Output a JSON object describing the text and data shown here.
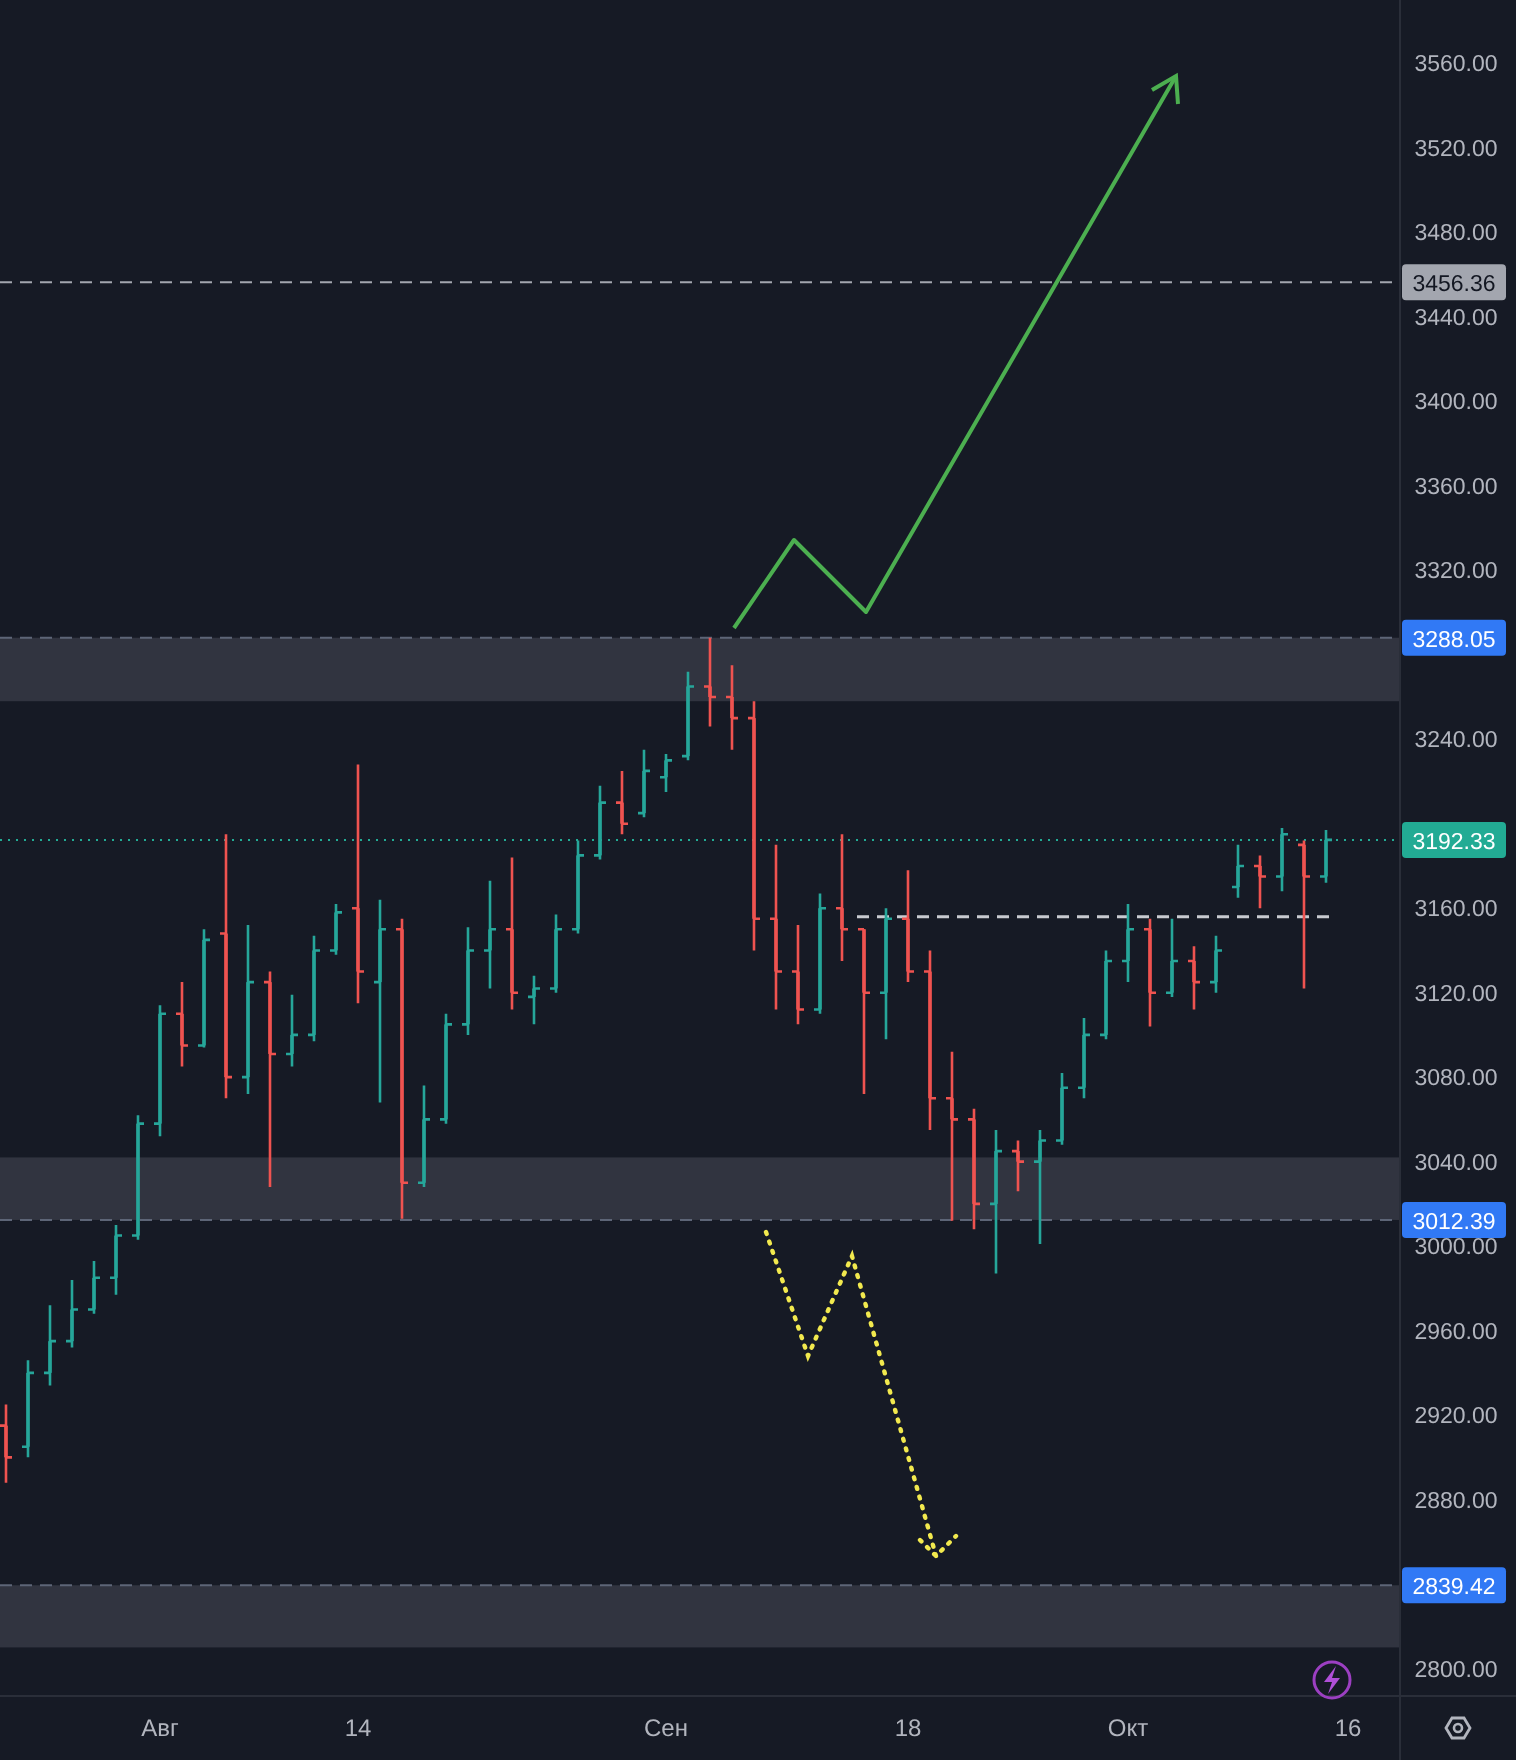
{
  "chart_data": {
    "type": "candlestick",
    "categories": [
      null,
      null,
      null,
      null,
      null,
      null,
      null,
      "Авг",
      null,
      null,
      null,
      null,
      null,
      null,
      null,
      null,
      "14",
      null,
      null,
      null,
      null,
      null,
      null,
      null,
      null,
      null,
      null,
      null,
      null,
      null,
      "Сен",
      null,
      null,
      null,
      null,
      null,
      null,
      null,
      null,
      null,
      null,
      "18",
      null,
      null,
      null,
      null,
      null,
      null,
      null,
      null,
      null,
      "Окт",
      null,
      null,
      null,
      null,
      null,
      null,
      null,
      null,
      null,
      "16"
    ],
    "ohlc": [
      [
        2915,
        2925,
        2888,
        2900
      ],
      [
        2905,
        2946,
        2900,
        2940
      ],
      [
        2940,
        2972,
        2934,
        2955
      ],
      [
        2955,
        2984,
        2952,
        2970
      ],
      [
        2970,
        2993,
        2968,
        2985
      ],
      [
        2985,
        3010,
        2977,
        3005
      ],
      [
        3005,
        3062,
        3003,
        3058
      ],
      [
        3058,
        3114,
        3052,
        3110
      ],
      [
        3110,
        3125,
        3085,
        3095
      ],
      [
        3095,
        3150,
        3094,
        3145
      ],
      [
        3148,
        3195,
        3070,
        3080
      ],
      [
        3080,
        3152,
        3072,
        3125
      ],
      [
        3125,
        3130,
        3028,
        3091
      ],
      [
        3091,
        3119,
        3085,
        3100
      ],
      [
        3100,
        3147,
        3097,
        3140
      ],
      [
        3140,
        3162,
        3138,
        3158
      ],
      [
        3160,
        3228,
        3115,
        3130
      ],
      [
        3125,
        3164,
        3068,
        3150
      ],
      [
        3150,
        3155,
        3013,
        3030
      ],
      [
        3030,
        3076,
        3028,
        3060
      ],
      [
        3060,
        3110,
        3058,
        3105
      ],
      [
        3105,
        3151,
        3100,
        3140
      ],
      [
        3140,
        3173,
        3122,
        3150
      ],
      [
        3150,
        3184,
        3112,
        3120
      ],
      [
        3118,
        3128,
        3105,
        3122
      ],
      [
        3122,
        3157,
        3120,
        3150
      ],
      [
        3150,
        3192,
        3148,
        3185
      ],
      [
        3185,
        3218,
        3183,
        3210
      ],
      [
        3210,
        3225,
        3195,
        3200
      ],
      [
        3205,
        3235,
        3203,
        3225
      ],
      [
        3222,
        3233,
        3215,
        3230
      ],
      [
        3232,
        3272,
        3230,
        3265
      ],
      [
        3265,
        3288,
        3246,
        3260
      ],
      [
        3260,
        3275,
        3235,
        3250
      ],
      [
        3250,
        3258,
        3140,
        3155
      ],
      [
        3155,
        3190,
        3112,
        3130
      ],
      [
        3130,
        3152,
        3105,
        3112
      ],
      [
        3112,
        3167,
        3110,
        3160
      ],
      [
        3160,
        3195,
        3135,
        3150
      ],
      [
        3150,
        3150,
        3072,
        3120
      ],
      [
        3120,
        3160,
        3098,
        3155
      ],
      [
        3155,
        3178,
        3125,
        3130
      ],
      [
        3130,
        3140,
        3055,
        3070
      ],
      [
        3070,
        3092,
        3012,
        3060
      ],
      [
        3060,
        3065,
        3008,
        3020
      ],
      [
        3020,
        3055,
        2987,
        3045
      ],
      [
        3045,
        3050,
        3026,
        3040
      ],
      [
        3040,
        3055,
        3001,
        3050
      ],
      [
        3050,
        3082,
        3048,
        3075
      ],
      [
        3075,
        3108,
        3070,
        3100
      ],
      [
        3100,
        3140,
        3098,
        3135
      ],
      [
        3135,
        3162,
        3125,
        3150
      ],
      [
        3150,
        3155,
        3104,
        3120
      ],
      [
        3120,
        3155,
        3118,
        3135
      ],
      [
        3135,
        3142,
        3112,
        3125
      ],
      [
        3125,
        3147,
        3120,
        3140
      ],
      [
        3170,
        3190,
        3165,
        3180
      ],
      [
        3180,
        3185,
        3160,
        3175
      ],
      [
        3175,
        3198,
        3168,
        3195
      ],
      [
        3190,
        3192,
        3122,
        3175
      ],
      [
        3175,
        3197,
        3172,
        3192.33
      ],
      null
    ],
    "ylim": [
      2787,
      3590
    ],
    "yticks": [
      {
        "value": 2800,
        "label": "2800.00"
      },
      {
        "value": 2880,
        "label": "2880.00"
      },
      {
        "value": 2920,
        "label": "2920.00"
      },
      {
        "value": 2960,
        "label": "2960.00"
      },
      {
        "value": 3000,
        "label": "3000.00"
      },
      {
        "value": 3040,
        "label": "3040.00"
      },
      {
        "value": 3080,
        "label": "3080.00"
      },
      {
        "value": 3120,
        "label": "3120.00"
      },
      {
        "value": 3160,
        "label": "3160.00"
      },
      {
        "value": 3240,
        "label": "3240.00"
      },
      {
        "value": 3320,
        "label": "3320.00"
      },
      {
        "value": 3360,
        "label": "3360.00"
      },
      {
        "value": 3400,
        "label": "3400.00"
      },
      {
        "value": 3440,
        "label": "3440.00"
      },
      {
        "value": 3480,
        "label": "3480.00"
      },
      {
        "value": 3520,
        "label": "3520.00"
      },
      {
        "value": 3560,
        "label": "3560.00"
      }
    ],
    "ref_lines": [
      {
        "axis": "y",
        "value": 3456.36,
        "label": "3456.36",
        "color": "#a3a6af",
        "line_style": "dashed"
      },
      {
        "axis": "y",
        "value": 3192.33,
        "label": "3192.33",
        "color": "#22ab94",
        "line_style": "dotted"
      },
      {
        "axis": "y",
        "value": 3156,
        "color": "#c8cad0",
        "line_style": "dashed"
      }
    ],
    "bands": [
      {
        "axis": "y",
        "from": 3258,
        "to": 3288.05,
        "label": "3288.05",
        "color": "#363a45"
      },
      {
        "axis": "y",
        "from": 3012.39,
        "to": 3042,
        "label": "3012.39",
        "color": "#363a45"
      },
      {
        "axis": "y",
        "from": 2810,
        "to": 2839.42,
        "label": "2839.42",
        "color": "#363a45"
      }
    ]
  }
}
